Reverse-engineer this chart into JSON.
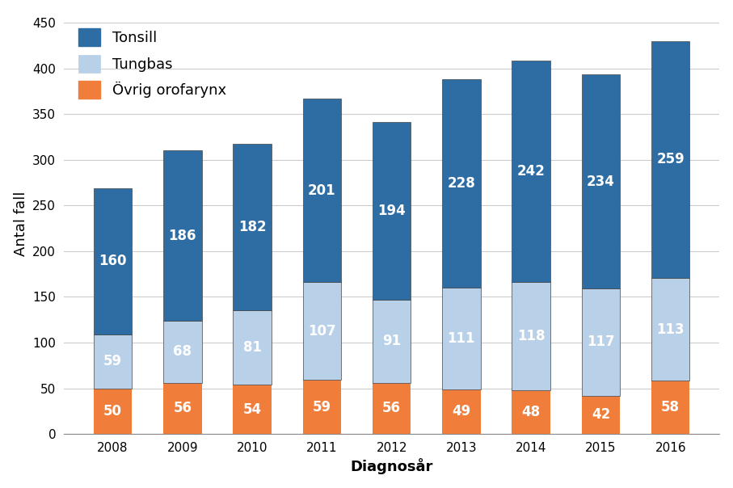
{
  "years": [
    2008,
    2009,
    2010,
    2011,
    2012,
    2013,
    2014,
    2015,
    2016
  ],
  "tonsill": [
    160,
    186,
    182,
    201,
    194,
    228,
    242,
    234,
    259
  ],
  "tungbas": [
    59,
    68,
    81,
    107,
    91,
    111,
    118,
    117,
    113
  ],
  "ovrig": [
    50,
    56,
    54,
    59,
    56,
    49,
    48,
    42,
    58
  ],
  "color_tonsill": "#2e6da4",
  "color_tungbas": "#b8d0e8",
  "color_ovrig": "#f07d3a",
  "ylabel": "Antal fall",
  "xlabel": "Diagnosår",
  "legend_labels": [
    "Tonsill",
    "Tungbas",
    "Övrig orofarynx"
  ],
  "ylim": [
    0,
    460
  ],
  "yticks": [
    0,
    50,
    100,
    150,
    200,
    250,
    300,
    350,
    400,
    450
  ],
  "label_fontsize": 13,
  "tick_fontsize": 11,
  "bar_label_fontsize": 12,
  "background_color": "#ffffff",
  "plot_bg_color": "#ffffff",
  "bar_width": 0.55,
  "edgecolor": "#222222",
  "edgewidth": 0.5
}
